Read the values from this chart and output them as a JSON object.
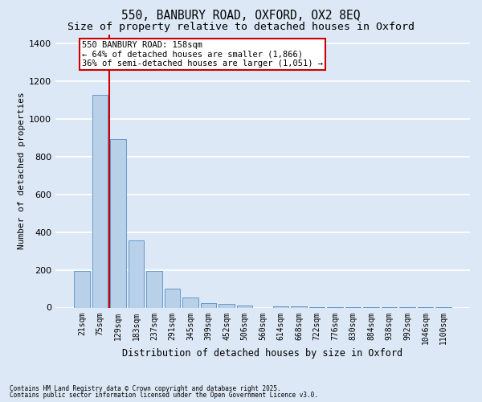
{
  "title_line1": "550, BANBURY ROAD, OXFORD, OX2 8EQ",
  "title_line2": "Size of property relative to detached houses in Oxford",
  "xlabel": "Distribution of detached houses by size in Oxford",
  "ylabel": "Number of detached properties",
  "categories": [
    "21sqm",
    "75sqm",
    "129sqm",
    "183sqm",
    "237sqm",
    "291sqm",
    "345sqm",
    "399sqm",
    "452sqm",
    "506sqm",
    "560sqm",
    "614sqm",
    "668sqm",
    "722sqm",
    "776sqm",
    "830sqm",
    "884sqm",
    "938sqm",
    "992sqm",
    "1046sqm",
    "1100sqm"
  ],
  "values": [
    195,
    1130,
    895,
    355,
    195,
    100,
    55,
    22,
    20,
    12,
    0,
    8,
    5,
    4,
    3,
    3,
    2,
    1,
    1,
    1,
    1
  ],
  "bar_color": "#b8d0e8",
  "bar_edge_color": "#6699cc",
  "background_color": "#dce8f5",
  "grid_color": "#ffffff",
  "vline_x": 1.5,
  "vline_color": "#cc0000",
  "annotation_text": "550 BANBURY ROAD: 158sqm\n← 64% of detached houses are smaller (1,866)\n36% of semi-detached houses are larger (1,051) →",
  "annotation_box_color": "#ffffff",
  "annotation_box_edge": "#cc0000",
  "ylim": [
    0,
    1450
  ],
  "yticks": [
    0,
    200,
    400,
    600,
    800,
    1000,
    1200,
    1400
  ],
  "footnote1": "Contains HM Land Registry data © Crown copyright and database right 2025.",
  "footnote2": "Contains public sector information licensed under the Open Government Licence v3.0.",
  "title_fontsize": 10.5,
  "subtitle_fontsize": 9.5,
  "tick_fontsize": 7,
  "label_fontsize": 8.5,
  "annotation_fontsize": 7.5,
  "ylabel_fontsize": 8
}
